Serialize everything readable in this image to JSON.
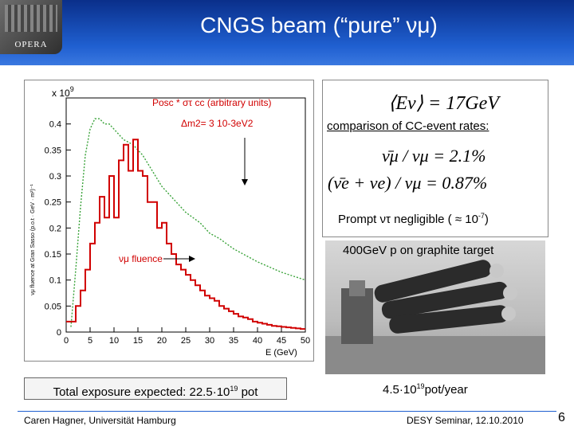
{
  "header": {
    "title": "CNGS beam (“pure” νμ)",
    "logo_text": "OPERA"
  },
  "plot": {
    "y_multiplier": "x 10",
    "y_multiplier_exp": "9",
    "ylabel": "νμ fluence at Gran Sasso (p.o.t · GeV · m²)⁻¹",
    "xlabel": "E (GeV)",
    "yticks": [
      "0",
      "0.05",
      "0.1",
      "0.15",
      "0.2",
      "0.25",
      "0.3",
      "0.35",
      "0.4"
    ],
    "xticks": [
      "0",
      "5",
      "10",
      "15",
      "20",
      "25",
      "30",
      "35",
      "40",
      "45",
      "50"
    ],
    "annotation_line1": "Posc * στ cc (arbitrary units)",
    "annotation_line2": "Δm2= 3 10-3eV2",
    "fluence_label": "νμ fluence",
    "green_curve_color": "#3aa33a",
    "red_curve_color": "#d10000"
  },
  "chart_data": {
    "type": "line",
    "xlabel": "E (GeV)",
    "xlim": [
      0,
      50
    ],
    "ylim": [
      0,
      0.45
    ],
    "series": [
      {
        "name": "νμ fluence",
        "type": "step",
        "x": [
          0,
          1,
          2,
          3,
          4,
          5,
          6,
          7,
          8,
          9,
          10,
          11,
          12,
          13,
          14,
          15,
          16,
          17,
          18,
          19,
          20,
          21,
          22,
          23,
          24,
          25,
          26,
          27,
          28,
          29,
          30,
          31,
          32,
          33,
          34,
          35,
          36,
          37,
          38,
          39,
          40,
          41,
          42,
          43,
          44,
          45,
          46,
          47,
          48,
          49,
          50
        ],
        "values": [
          0.02,
          0.02,
          0.05,
          0.08,
          0.12,
          0.17,
          0.21,
          0.26,
          0.22,
          0.3,
          0.22,
          0.33,
          0.36,
          0.31,
          0.37,
          0.31,
          0.3,
          0.25,
          0.25,
          0.2,
          0.21,
          0.17,
          0.15,
          0.13,
          0.12,
          0.11,
          0.1,
          0.09,
          0.08,
          0.07,
          0.065,
          0.06,
          0.05,
          0.045,
          0.04,
          0.035,
          0.03,
          0.028,
          0.025,
          0.02,
          0.018,
          0.016,
          0.014,
          0.012,
          0.011,
          0.01,
          0.009,
          0.008,
          0.007,
          0.006,
          0.005
        ]
      },
      {
        "name": "Posc * στ cc (arbitrary units)",
        "type": "line",
        "x": [
          1,
          2,
          3,
          4,
          5,
          6,
          7,
          8,
          9,
          10,
          12,
          14,
          16,
          18,
          20,
          22,
          25,
          28,
          30,
          32,
          35,
          38,
          40,
          45,
          50
        ],
        "values": [
          0.01,
          0.12,
          0.24,
          0.34,
          0.39,
          0.41,
          0.41,
          0.4,
          0.4,
          0.39,
          0.37,
          0.36,
          0.34,
          0.31,
          0.28,
          0.26,
          0.23,
          0.21,
          0.19,
          0.18,
          0.16,
          0.145,
          0.135,
          0.115,
          0.1
        ]
      }
    ]
  },
  "info": {
    "energy_eq": "⟨Eν⟩ = 17GeV",
    "comparison_label": "comparison of CC-event rates:",
    "eq1": "ν̄μ / νμ = 2.1%",
    "eq2": "(ν̄e + νe) / νμ = 0.87%",
    "prompt_text": "Prompt ντ negligible ( ≈ 10",
    "prompt_exp": "-7",
    "prompt_end": ")"
  },
  "photo": {
    "caption": "400GeV p on graphite target"
  },
  "exposure": {
    "text": "Total  exposure expected: 22.5·10",
    "exp": "19",
    "end": " pot"
  },
  "rate": {
    "text": "4.5·10",
    "exp": "19",
    "end": "pot/year"
  },
  "footer": {
    "author": "Caren Hagner, Universität Hamburg",
    "event": "DESY Seminar, 12.10.2010",
    "page": "6"
  }
}
